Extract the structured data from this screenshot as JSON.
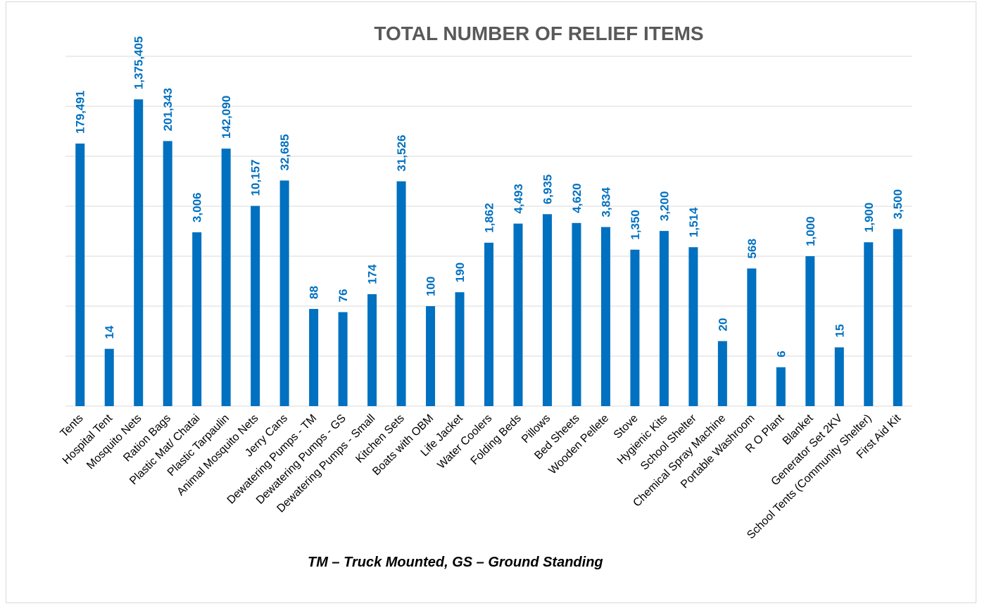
{
  "chart_data": {
    "type": "bar",
    "title": "TOTAL NUMBER OF RELIEF ITEMS",
    "note": "TM – Truck Mounted, GS – Ground Standing",
    "colors": {
      "bar": "#0070c0",
      "label": "#0070c0",
      "grid": "#d9d9d9",
      "title": "#595959"
    },
    "scale": "log",
    "ylim": [
      1,
      10000000
    ],
    "grid": true,
    "legend": "none",
    "categories": [
      "Tents",
      "Hospital Tent",
      "Mosquito Nets",
      "Ration Bags",
      "Plastic Mat/ Chatai",
      "Plastic Tarpaulin",
      "Animal Mosquito Nets",
      "Jerry Cans",
      "Dewatering Pumps - TM",
      "Dewatering Pumps - GS",
      "Dewatering Pumps - Small",
      "Kitchen Sets",
      "Boats with OBM",
      "Life Jacket",
      "Water Coolers",
      "Folding Beds",
      "Pillows",
      "Bed Sheets",
      "Wooden Pellete",
      "Stove",
      "Hygienic Kits",
      "School Shelter",
      "Chemical Spray Machine",
      "Portable Washroom",
      "R O Plant",
      "Blanket",
      "Generator Set 2KV",
      "School Tents (Community Shelter)",
      "First Aid Kit"
    ],
    "values": [
      179491,
      14,
      1375405,
      201343,
      3006,
      142090,
      10157,
      32685,
      88,
      76,
      174,
      31526,
      100,
      190,
      1862,
      4493,
      6935,
      4620,
      3834,
      1350,
      3200,
      1514,
      20,
      568,
      6,
      1000,
      15,
      1900,
      3500
    ],
    "labels": [
      "179,491",
      "14",
      "1,375,405",
      "201,343",
      "3,006",
      "142,090",
      "10,157",
      "32,685",
      "88",
      "76",
      "174",
      "31,526",
      "100",
      "190",
      "1,862",
      "4,493",
      "6,935",
      "4,620",
      "3,834",
      "1,350",
      "3,200",
      "1,514",
      "20",
      "568",
      "6",
      "1,000",
      "15",
      "1,900",
      "3,500"
    ]
  }
}
